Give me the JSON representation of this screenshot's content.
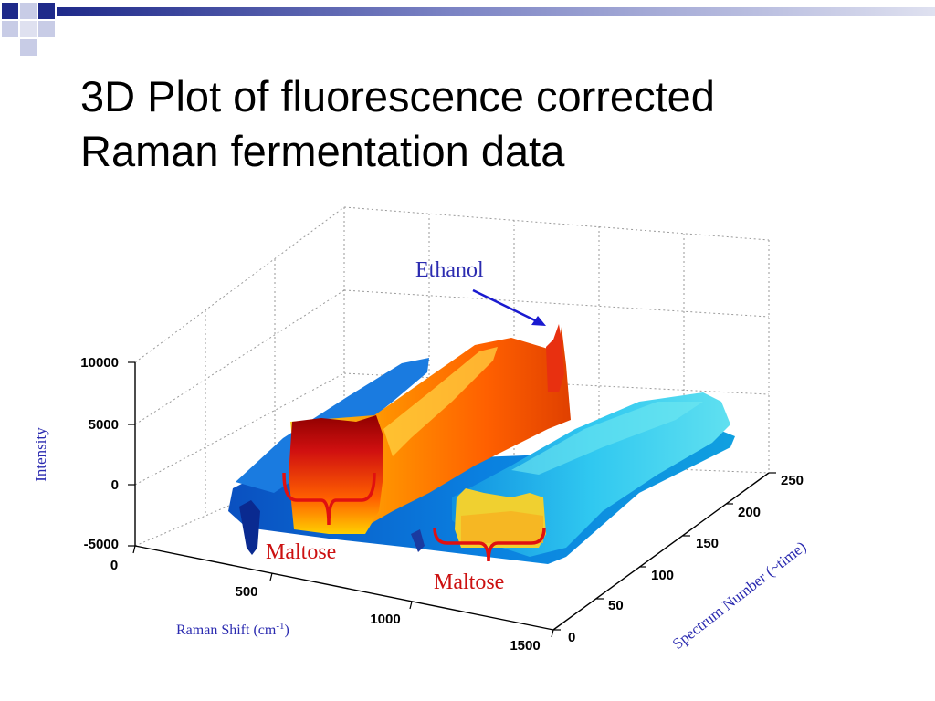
{
  "slide": {
    "title_line1": "3D Plot of fluorescence corrected",
    "title_line2": "Raman fermentation data"
  },
  "colors": {
    "navy": "#1f2a8a",
    "annotation_blue": "#2b2bb0",
    "annotation_red": "#cc1111",
    "title_bar": "#c8cce6"
  },
  "chart_data": {
    "type": "surface",
    "xlabel": "Raman Shift (cm-1)",
    "xlabel_base": "Raman Shift (cm",
    "xlabel_sup": "-1",
    "xlabel_end": ")",
    "ylabel": "Spectrum Number (~time)",
    "zlabel": "Intensity",
    "xlim": [
      0,
      1500
    ],
    "ylim": [
      0,
      250
    ],
    "zlim": [
      -5000,
      10000
    ],
    "x_ticks": [
      "0",
      "500",
      "1000",
      "1500"
    ],
    "y_ticks": [
      "0",
      "50",
      "100",
      "150",
      "200",
      "250"
    ],
    "z_ticks": [
      "-5000",
      "0",
      "5000",
      "10000"
    ],
    "grid": true,
    "annotations": [
      "Ethanol",
      "Maltose",
      "Maltose"
    ],
    "colormap": "jet"
  }
}
